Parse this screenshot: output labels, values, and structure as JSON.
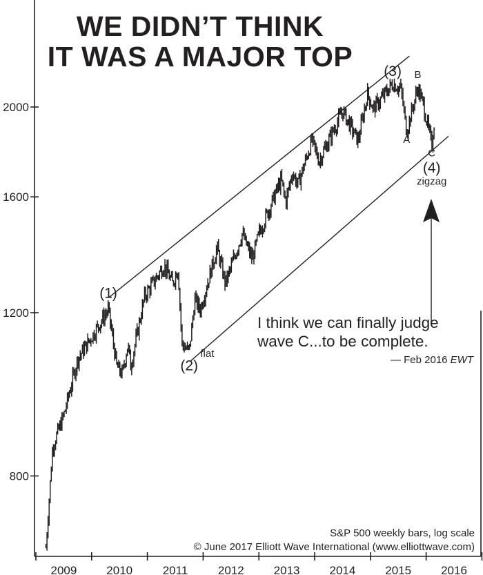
{
  "chart_data": {
    "type": "bar",
    "subtype": "weekly high-low bars",
    "title": [
      "WE DIDN’T THINK",
      "IT WAS A MAJOR TOP"
    ],
    "yscale": "log",
    "ylim": [
      640,
      2350
    ],
    "yticks": [
      800,
      1200,
      1600,
      2000
    ],
    "ytick_labels": [
      "800",
      "1200",
      "1600",
      "2000"
    ],
    "xlim": [
      2009,
      2017
    ],
    "xtick_labels": [
      "2009",
      "2010",
      "2011",
      "2012",
      "2013",
      "2014",
      "2015",
      "2016"
    ],
    "series": [
      {
        "name": "S&P 500",
        "points": [
          [
            2009.18,
            670
          ],
          [
            2009.3,
            860
          ],
          [
            2009.5,
            930
          ],
          [
            2009.75,
            1070
          ],
          [
            2010.0,
            1130
          ],
          [
            2010.3,
            1210
          ],
          [
            2010.45,
            1050
          ],
          [
            2010.55,
            1030
          ],
          [
            2010.65,
            1110
          ],
          [
            2010.7,
            1050
          ],
          [
            2010.95,
            1250
          ],
          [
            2011.3,
            1350
          ],
          [
            2011.45,
            1290
          ],
          [
            2011.55,
            1340
          ],
          [
            2011.62,
            1110
          ],
          [
            2011.75,
            1090
          ],
          [
            2011.85,
            1240
          ],
          [
            2011.95,
            1210
          ],
          [
            2012.25,
            1410
          ],
          [
            2012.4,
            1290
          ],
          [
            2012.7,
            1460
          ],
          [
            2012.88,
            1370
          ],
          [
            2013.0,
            1460
          ],
          [
            2013.4,
            1670
          ],
          [
            2013.48,
            1580
          ],
          [
            2013.6,
            1700
          ],
          [
            2013.7,
            1650
          ],
          [
            2013.95,
            1840
          ],
          [
            2014.08,
            1750
          ],
          [
            2014.5,
            1980
          ],
          [
            2014.78,
            1840
          ],
          [
            2014.95,
            2070
          ],
          [
            2015.05,
            1990
          ],
          [
            2015.4,
            2120
          ],
          [
            2015.55,
            2090
          ],
          [
            2015.65,
            1880
          ],
          [
            2015.85,
            2100
          ],
          [
            2015.95,
            2010
          ],
          [
            2016.1,
            1820
          ],
          [
            2016.15,
            1940
          ]
        ]
      }
    ],
    "channel": {
      "upper": [
        [
          2010.3,
          1245
        ],
        [
          2015.7,
          2270
        ]
      ],
      "lower": [
        [
          2011.78,
          1065
        ],
        [
          2016.4,
          1860
        ]
      ]
    },
    "wave_labels": [
      {
        "text": "(1)",
        "x": 2010.3,
        "y": 1245
      },
      {
        "text": "(2)",
        "x": 2011.75,
        "y": 1040
      },
      {
        "text": "flat",
        "x": 2011.95,
        "y": 1075
      },
      {
        "text": "(3)",
        "x": 2015.4,
        "y": 2160
      },
      {
        "text": "A",
        "x": 2015.65,
        "y": 1830
      },
      {
        "text": "B",
        "x": 2015.85,
        "y": 2150
      },
      {
        "text": "C",
        "x": 2016.1,
        "y": 1770
      },
      {
        "text": "(4)",
        "x": 2016.1,
        "y": 1700
      },
      {
        "text": "zigzag",
        "x": 2016.1,
        "y": 1650
      }
    ],
    "annotations": {
      "quote_line1": "I think we can finally judge",
      "quote_line2": "wave C...to be complete.",
      "quote_source": "— Feb 2016 ",
      "quote_source_italic": "EWT",
      "caption": "S&P 500 weekly bars, log scale",
      "copyright": "© June 2017 Elliott Wave International (www.elliottwave.com)"
    }
  }
}
